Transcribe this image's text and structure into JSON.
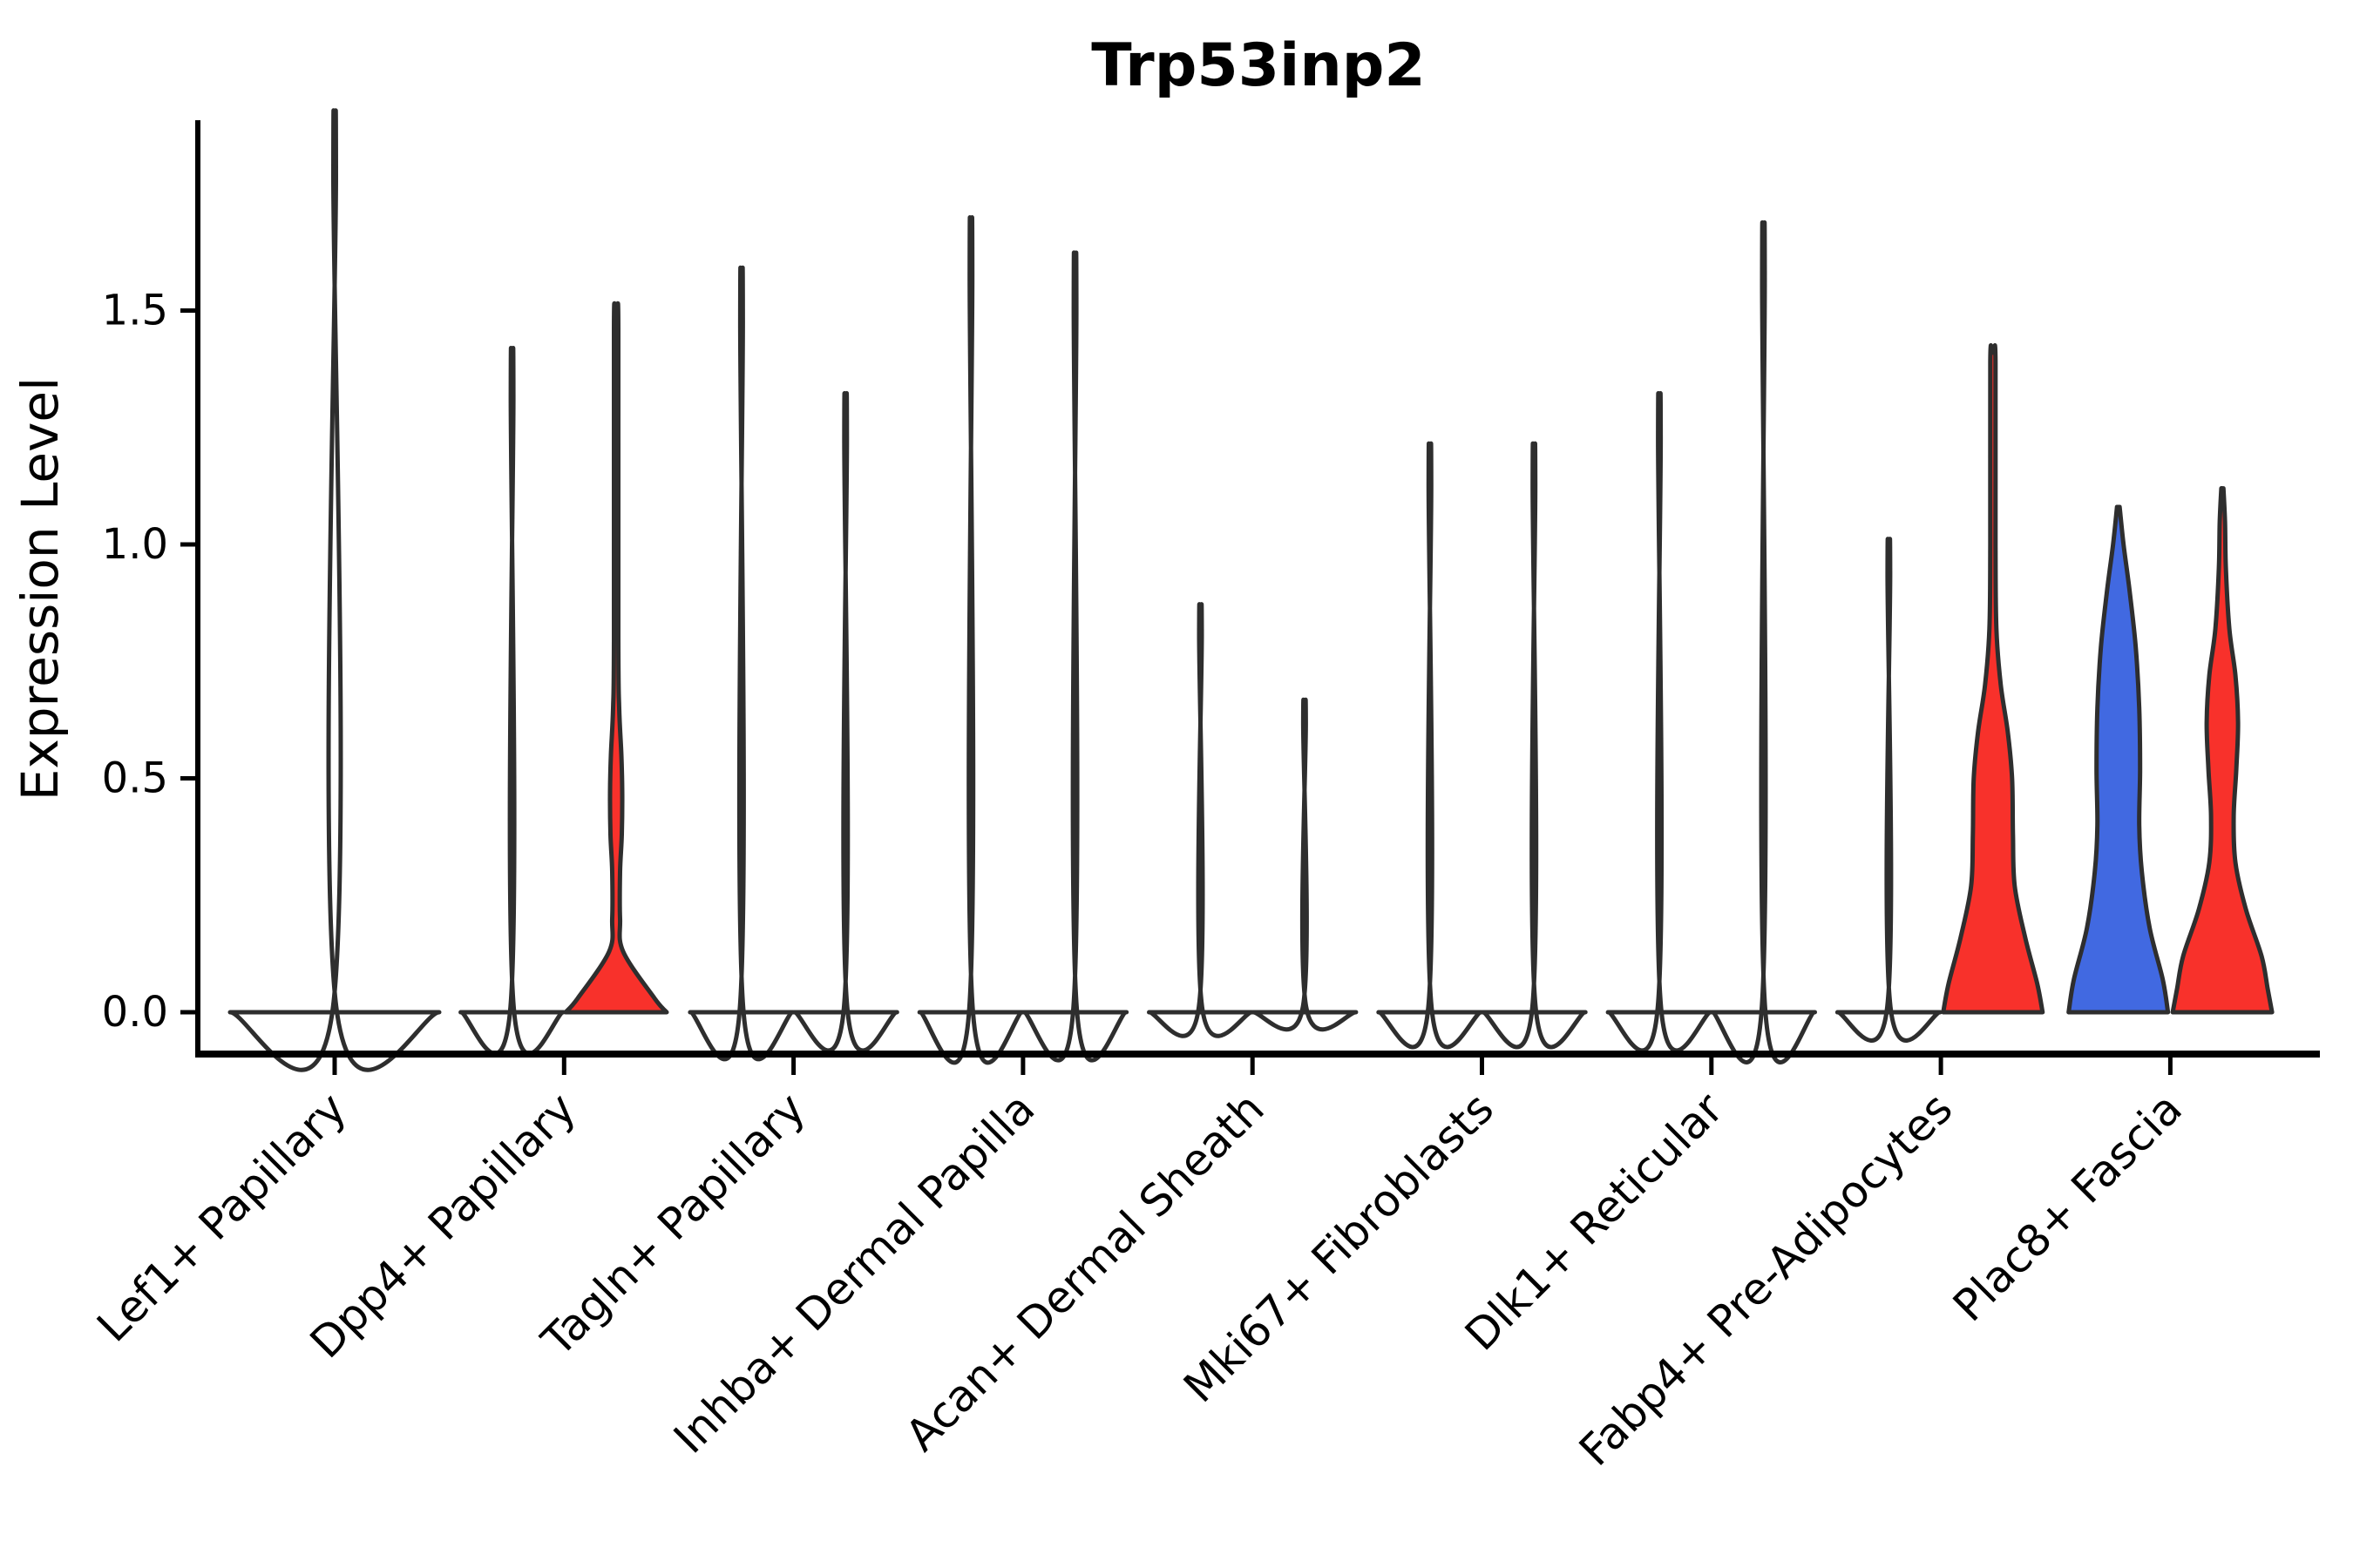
{
  "title": "Trp53inp2",
  "ylabel": "Expression Level",
  "colors": {
    "red_fill": "#F8312B",
    "blue_fill": "#4169E1",
    "violin_outline": "#2E2E2E",
    "axis": "#000000"
  },
  "chart_data": {
    "type": "violin",
    "title": "Trp53inp2",
    "xlabel": "",
    "ylabel": "Expression Level",
    "ylim": [
      0,
      1.9
    ],
    "yticks": [
      "0.0",
      "0.5",
      "1.0",
      "1.5"
    ],
    "ytick_values": [
      0.0,
      0.5,
      1.0,
      1.5
    ],
    "grid": false,
    "legend": "none",
    "categories": [
      "Lef1+ Papillary",
      "Dpp4+ Papillary",
      "Tagln+ Papillary",
      "Inhba+ Dermal Papilla",
      "Acan+ Dermal Sheath",
      "Mki67+ Fibroblasts",
      "Dlk1+ Reticular",
      "Fabp4+ Pre-Adipocytes",
      "Plac8+ Fascia"
    ],
    "groups": [
      {
        "category": "Lef1+ Papillary",
        "violins": [
          {
            "split": "single",
            "fill": "none",
            "max_expression": 1.81,
            "profile": [
              [
                0,
                120
              ],
              [
                0.012,
                1.8
              ],
              [
                1.79,
                1.5
              ],
              [
                1.81,
                0.8
              ]
            ]
          }
        ]
      },
      {
        "category": "Dpp4+ Papillary",
        "violins": [
          {
            "split": "left",
            "fill": "none",
            "max_expression": 1.33,
            "profile": [
              [
                0,
                59
              ],
              [
                0.012,
                1.8
              ],
              [
                1.32,
                1.5
              ],
              [
                1.33,
                0.8
              ]
            ]
          },
          {
            "split": "right",
            "fill": "red",
            "max_expression": 1.48,
            "profile": [
              [
                0,
                58
              ],
              [
                0.03,
                44
              ],
              [
                0.13,
                8
              ],
              [
                0.2,
                4.5
              ],
              [
                0.3,
                4.5
              ],
              [
                0.38,
                6.5
              ],
              [
                0.47,
                7
              ],
              [
                0.55,
                6
              ],
              [
                0.65,
                3.5
              ],
              [
                0.8,
                2.5
              ],
              [
                1.46,
                2.5
              ],
              [
                1.48,
                1.2
              ]
            ]
          }
        ]
      },
      {
        "category": "Tagln+ Papillary",
        "violins": [
          {
            "split": "left",
            "fill": "none",
            "max_expression": 1.49,
            "profile": [
              [
                0,
                59
              ],
              [
                0.012,
                1.8
              ],
              [
                1.48,
                1.5
              ],
              [
                1.49,
                0.8
              ]
            ]
          },
          {
            "split": "right",
            "fill": "none",
            "max_expression": 1.24,
            "profile": [
              [
                0,
                59
              ],
              [
                0.012,
                1.8
              ],
              [
                1.23,
                1.5
              ],
              [
                1.24,
                0.8
              ]
            ]
          }
        ]
      },
      {
        "category": "Inhba+ Dermal Papilla",
        "violins": [
          {
            "split": "left",
            "fill": "none",
            "max_expression": 1.59,
            "profile": [
              [
                0,
                59
              ],
              [
                0.012,
                1.8
              ],
              [
                1.58,
                1.5
              ],
              [
                1.59,
                0.8
              ]
            ]
          },
          {
            "split": "right",
            "fill": "none",
            "max_expression": 1.52,
            "profile": [
              [
                0,
                59
              ],
              [
                0.012,
                1.8
              ],
              [
                1.51,
                1.5
              ],
              [
                1.52,
                0.8
              ]
            ]
          }
        ]
      },
      {
        "category": "Acan+ Dermal Sheath",
        "violins": [
          {
            "split": "left",
            "fill": "none",
            "max_expression": 0.82,
            "profile": [
              [
                0,
                59
              ],
              [
                0.012,
                1.8
              ],
              [
                0.81,
                1.5
              ],
              [
                0.82,
                0.8
              ]
            ]
          },
          {
            "split": "right",
            "fill": "none",
            "max_expression": 0.63,
            "profile": [
              [
                0,
                59
              ],
              [
                0.012,
                1.8
              ],
              [
                0.62,
                1.5
              ],
              [
                0.63,
                0.8
              ]
            ]
          }
        ]
      },
      {
        "category": "Mki67+ Fibroblasts",
        "violins": [
          {
            "split": "left",
            "fill": "none",
            "max_expression": 1.14,
            "profile": [
              [
                0,
                59
              ],
              [
                0.012,
                1.8
              ],
              [
                1.13,
                1.5
              ],
              [
                1.14,
                0.8
              ]
            ]
          },
          {
            "split": "right",
            "fill": "none",
            "max_expression": 1.14,
            "profile": [
              [
                0,
                59
              ],
              [
                0.012,
                1.8
              ],
              [
                1.13,
                1.5
              ],
              [
                1.14,
                0.8
              ]
            ]
          }
        ]
      },
      {
        "category": "Dlk1+ Reticular",
        "violins": [
          {
            "split": "left",
            "fill": "none",
            "max_expression": 1.24,
            "profile": [
              [
                0,
                59
              ],
              [
                0.012,
                1.8
              ],
              [
                1.23,
                1.5
              ],
              [
                1.24,
                0.8
              ]
            ]
          },
          {
            "split": "right",
            "fill": "none",
            "max_expression": 1.58,
            "profile": [
              [
                0,
                59
              ],
              [
                0.012,
                1.8
              ],
              [
                1.57,
                1.5
              ],
              [
                1.58,
                0.8
              ]
            ]
          }
        ]
      },
      {
        "category": "Fabp4+ Pre-Adipocytes",
        "violins": [
          {
            "split": "left",
            "fill": "none",
            "max_expression": 0.95,
            "profile": [
              [
                0,
                59
              ],
              [
                0.012,
                1.8
              ],
              [
                0.94,
                1.5
              ],
              [
                0.95,
                0.8
              ]
            ]
          },
          {
            "split": "right",
            "fill": "red",
            "max_expression": 1.41,
            "profile": [
              [
                0,
                57
              ],
              [
                0.06,
                51
              ],
              [
                0.16,
                37
              ],
              [
                0.27,
                25
              ],
              [
                0.38,
                23
              ],
              [
                0.5,
                22
              ],
              [
                0.6,
                17
              ],
              [
                0.7,
                9
              ],
              [
                0.82,
                4
              ],
              [
                1.0,
                3
              ],
              [
                1.39,
                3
              ],
              [
                1.41,
                1.2
              ]
            ]
          }
        ]
      },
      {
        "category": "Plac8+ Fascia",
        "violins": [
          {
            "split": "left",
            "fill": "blue",
            "max_expression": 1.08,
            "profile": [
              [
                0,
                57
              ],
              [
                0.07,
                51
              ],
              [
                0.18,
                36
              ],
              [
                0.3,
                27
              ],
              [
                0.4,
                24
              ],
              [
                0.52,
                25
              ],
              [
                0.65,
                24
              ],
              [
                0.78,
                20
              ],
              [
                0.9,
                13
              ],
              [
                1.0,
                6
              ],
              [
                1.08,
                1.5
              ]
            ]
          },
          {
            "split": "right",
            "fill": "red",
            "max_expression": 1.12,
            "profile": [
              [
                0,
                57
              ],
              [
                0.05,
                52
              ],
              [
                0.12,
                45
              ],
              [
                0.22,
                27
              ],
              [
                0.32,
                15
              ],
              [
                0.42,
                13
              ],
              [
                0.52,
                16
              ],
              [
                0.62,
                18
              ],
              [
                0.72,
                15
              ],
              [
                0.82,
                8
              ],
              [
                0.95,
                4
              ],
              [
                1.05,
                3
              ],
              [
                1.12,
                1.2
              ]
            ]
          }
        ]
      }
    ]
  }
}
